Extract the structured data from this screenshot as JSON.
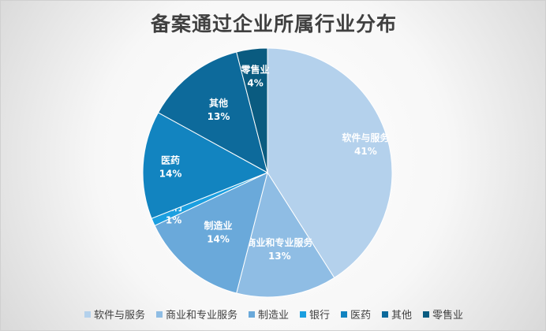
{
  "chart_data": {
    "type": "pie",
    "title": "备案通过企业所属行业分布",
    "categories": [
      "软件与服务",
      "商业和专业服务",
      "制造业",
      "银行",
      "医药",
      "其他",
      "零售业"
    ],
    "values": [
      41,
      13,
      14,
      1,
      14,
      13,
      4
    ],
    "labels": [
      "41%",
      "13%",
      "14%",
      "1%",
      "14%",
      "13%",
      "4%"
    ],
    "colors": [
      "#b4d1ec",
      "#8fbde4",
      "#6aa9da",
      "#1b9fe0",
      "#1284c0",
      "#0d6a9b",
      "#0a5b80"
    ],
    "legend_position": "bottom"
  }
}
